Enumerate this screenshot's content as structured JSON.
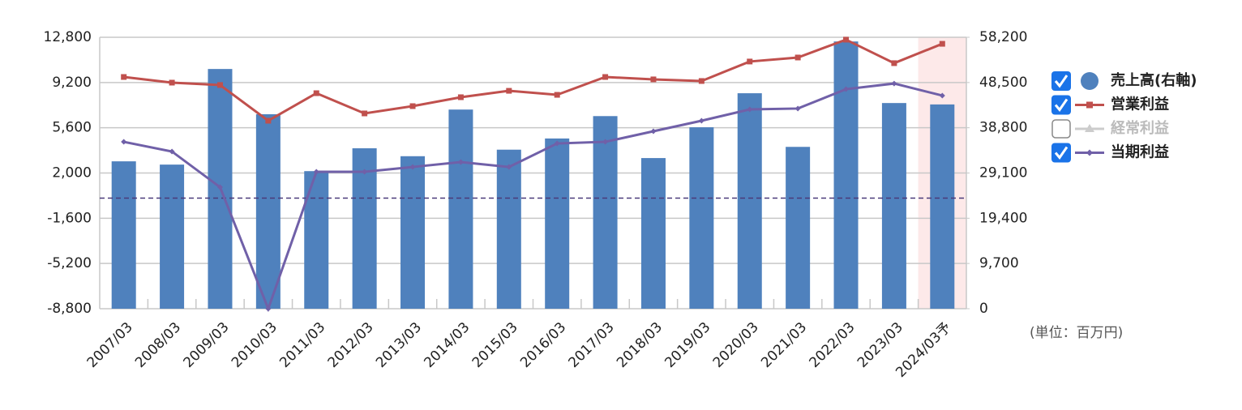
{
  "chart_data": {
    "type": "bar_line",
    "categories": [
      "2007/03",
      "2008/03",
      "2009/03",
      "2010/03",
      "2011/03",
      "2012/03",
      "2013/03",
      "2014/03",
      "2015/03",
      "2016/03",
      "2017/03",
      "2018/03",
      "2019/03",
      "2020/03",
      "2021/03",
      "2022/03",
      "2023/03",
      "2024/03予"
    ],
    "series": [
      {
        "name": "売上高(右軸)",
        "type": "bar",
        "axis": "y2",
        "color": "#4f81bd",
        "checked": true,
        "values": [
          31600,
          30900,
          51400,
          41700,
          29500,
          34400,
          32700,
          42700,
          34100,
          36500,
          41300,
          32300,
          38900,
          46200,
          34700,
          57300,
          44100,
          43800
        ]
      },
      {
        "name": "営業利益",
        "type": "line",
        "axis": "y",
        "color": "#c0504d",
        "marker": "square",
        "checked": true,
        "values": [
          9640,
          9190,
          9000,
          6160,
          8350,
          6740,
          7320,
          8030,
          8540,
          8220,
          9640,
          9450,
          9320,
          10870,
          11190,
          12610,
          10740,
          12280
        ]
      },
      {
        "name": "経常利益",
        "type": "line",
        "axis": "y",
        "color": "#cccccc",
        "marker": "triangle",
        "checked": false,
        "values": [
          null,
          null,
          null,
          null,
          null,
          null,
          null,
          null,
          null,
          null,
          null,
          null,
          null,
          null,
          null,
          null,
          null,
          null
        ]
      },
      {
        "name": "当期利益",
        "type": "line",
        "axis": "y",
        "color": "#7060a8",
        "marker": "diamond",
        "checked": true,
        "values": [
          4480,
          3710,
          870,
          -8800,
          2100,
          2100,
          2480,
          2870,
          2480,
          4350,
          4480,
          5320,
          6160,
          7060,
          7130,
          8670,
          9120,
          8160
        ]
      }
    ],
    "ylim": [
      -8800,
      12800
    ],
    "yticks": [
      {
        "value": -8800,
        "label": "-8,800"
      },
      {
        "value": -5200,
        "label": "-5,200"
      },
      {
        "value": -1600,
        "label": "-1,600"
      },
      {
        "value": 2000,
        "label": "2,000"
      },
      {
        "value": 5600,
        "label": "5,600"
      },
      {
        "value": 9200,
        "label": "9,200"
      },
      {
        "value": 12800,
        "label": "12,800"
      }
    ],
    "y2lim": [
      0,
      58200
    ],
    "y2ticks": [
      0,
      {
        "value": 9700,
        "label": "9,700"
      },
      {
        "value": 19400,
        "label": "19,400"
      },
      {
        "value": 29100,
        "label": "29,100"
      },
      {
        "value": 38800,
        "label": "38,800"
      },
      {
        "value": 48500,
        "label": "48,500"
      },
      {
        "value": 58200,
        "label": "58,200"
      }
    ],
    "grid": true,
    "zero_line": true,
    "highlight_index": 17,
    "legend": "right",
    "unit_label": "(単位：百万円)"
  }
}
